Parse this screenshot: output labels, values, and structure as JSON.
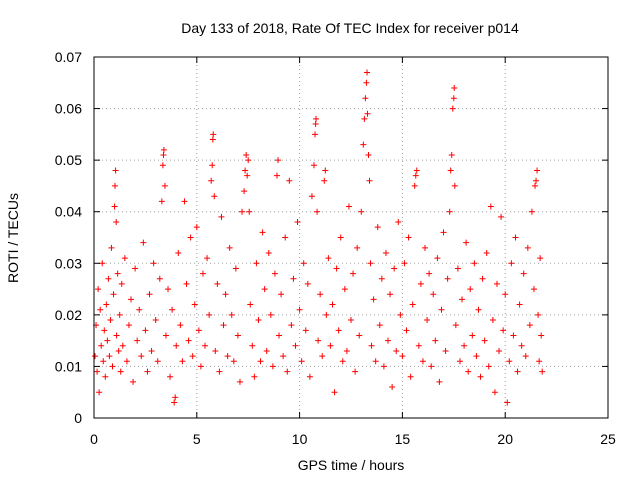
{
  "chart_data": {
    "type": "scatter",
    "title": "Day 133 of 2018, Rate Of TEC Index for receiver p014",
    "xlabel": "GPS time / hours",
    "ylabel": "ROTI / TECUs",
    "xlim": [
      0,
      25
    ],
    "ylim": [
      0,
      0.07
    ],
    "xticks": [
      "0",
      "5",
      "10",
      "15",
      "20",
      "25"
    ],
    "yticks": [
      "0",
      "0.01",
      "0.02",
      "0.03",
      "0.04",
      "0.05",
      "0.06",
      "0.07"
    ],
    "grid": true,
    "marker": "+",
    "color": "#ff0000",
    "series": [
      {
        "points": [
          [
            0.05,
            0.012
          ],
          [
            0.1,
            0.018
          ],
          [
            0.15,
            0.009
          ],
          [
            0.2,
            0.025
          ],
          [
            0.25,
            0.005
          ],
          [
            0.3,
            0.021
          ],
          [
            0.35,
            0.014
          ],
          [
            0.4,
            0.03
          ],
          [
            0.45,
            0.011
          ],
          [
            0.5,
            0.017
          ],
          [
            0.55,
            0.008
          ],
          [
            0.6,
            0.022
          ],
          [
            0.65,
            0.015
          ],
          [
            0.7,
            0.027
          ],
          [
            0.75,
            0.012
          ],
          [
            0.8,
            0.019
          ],
          [
            0.85,
            0.033
          ],
          [
            0.9,
            0.01
          ],
          [
            0.95,
            0.024
          ],
          [
            1.0,
            0.041
          ],
          [
            1.02,
            0.045
          ],
          [
            1.05,
            0.048
          ],
          [
            1.08,
            0.038
          ],
          [
            1.1,
            0.016
          ],
          [
            1.15,
            0.028
          ],
          [
            1.2,
            0.013
          ],
          [
            1.25,
            0.02
          ],
          [
            1.3,
            0.009
          ],
          [
            1.35,
            0.026
          ],
          [
            1.4,
            0.014
          ],
          [
            1.5,
            0.031
          ],
          [
            1.6,
            0.011
          ],
          [
            1.7,
            0.018
          ],
          [
            1.8,
            0.023
          ],
          [
            1.9,
            0.007
          ],
          [
            2.0,
            0.029
          ],
          [
            2.1,
            0.015
          ],
          [
            2.2,
            0.021
          ],
          [
            2.3,
            0.012
          ],
          [
            2.4,
            0.034
          ],
          [
            2.5,
            0.017
          ],
          [
            2.6,
            0.009
          ],
          [
            2.7,
            0.024
          ],
          [
            2.8,
            0.013
          ],
          [
            2.9,
            0.03
          ],
          [
            3.0,
            0.019
          ],
          [
            3.1,
            0.011
          ],
          [
            3.2,
            0.027
          ],
          [
            3.3,
            0.042
          ],
          [
            3.35,
            0.049
          ],
          [
            3.38,
            0.051
          ],
          [
            3.4,
            0.052
          ],
          [
            3.45,
            0.045
          ],
          [
            3.5,
            0.016
          ],
          [
            3.6,
            0.025
          ],
          [
            3.7,
            0.008
          ],
          [
            3.8,
            0.021
          ],
          [
            3.9,
            0.003
          ],
          [
            3.95,
            0.004
          ],
          [
            4.0,
            0.014
          ],
          [
            4.1,
            0.032
          ],
          [
            4.2,
            0.018
          ],
          [
            4.3,
            0.011
          ],
          [
            4.4,
            0.042
          ],
          [
            4.5,
            0.026
          ],
          [
            4.6,
            0.015
          ],
          [
            4.7,
            0.035
          ],
          [
            4.8,
            0.012
          ],
          [
            4.9,
            0.022
          ],
          [
            5.0,
            0.037
          ],
          [
            5.1,
            0.017
          ],
          [
            5.2,
            0.01
          ],
          [
            5.3,
            0.028
          ],
          [
            5.4,
            0.014
          ],
          [
            5.5,
            0.031
          ],
          [
            5.6,
            0.02
          ],
          [
            5.7,
            0.046
          ],
          [
            5.75,
            0.049
          ],
          [
            5.78,
            0.054
          ],
          [
            5.8,
            0.055
          ],
          [
            5.85,
            0.043
          ],
          [
            5.9,
            0.013
          ],
          [
            6.0,
            0.026
          ],
          [
            6.1,
            0.009
          ],
          [
            6.2,
            0.039
          ],
          [
            6.3,
            0.018
          ],
          [
            6.4,
            0.024
          ],
          [
            6.5,
            0.012
          ],
          [
            6.6,
            0.033
          ],
          [
            6.7,
            0.02
          ],
          [
            6.8,
            0.011
          ],
          [
            6.9,
            0.029
          ],
          [
            7.0,
            0.016
          ],
          [
            7.1,
            0.007
          ],
          [
            7.2,
            0.04
          ],
          [
            7.3,
            0.044
          ],
          [
            7.35,
            0.048
          ],
          [
            7.4,
            0.051
          ],
          [
            7.45,
            0.047
          ],
          [
            7.5,
            0.05
          ],
          [
            7.55,
            0.04
          ],
          [
            7.6,
            0.022
          ],
          [
            7.7,
            0.014
          ],
          [
            7.8,
            0.008
          ],
          [
            7.9,
            0.03
          ],
          [
            8.0,
            0.019
          ],
          [
            8.1,
            0.011
          ],
          [
            8.2,
            0.036
          ],
          [
            8.3,
            0.025
          ],
          [
            8.4,
            0.013
          ],
          [
            8.5,
            0.032
          ],
          [
            8.6,
            0.02
          ],
          [
            8.7,
            0.01
          ],
          [
            8.8,
            0.028
          ],
          [
            8.9,
            0.047
          ],
          [
            8.95,
            0.05
          ],
          [
            9.0,
            0.016
          ],
          [
            9.1,
            0.024
          ],
          [
            9.2,
            0.012
          ],
          [
            9.3,
            0.035
          ],
          [
            9.4,
            0.009
          ],
          [
            9.5,
            0.046
          ],
          [
            9.6,
            0.018
          ],
          [
            9.7,
            0.027
          ],
          [
            9.8,
            0.014
          ],
          [
            9.9,
            0.038
          ],
          [
            10.0,
            0.021
          ],
          [
            10.1,
            0.011
          ],
          [
            10.2,
            0.03
          ],
          [
            10.3,
            0.017
          ],
          [
            10.4,
            0.026
          ],
          [
            10.5,
            0.008
          ],
          [
            10.6,
            0.043
          ],
          [
            10.7,
            0.049
          ],
          [
            10.75,
            0.055
          ],
          [
            10.78,
            0.057
          ],
          [
            10.8,
            0.058
          ],
          [
            10.85,
            0.04
          ],
          [
            10.9,
            0.015
          ],
          [
            11.0,
            0.024
          ],
          [
            11.1,
            0.012
          ],
          [
            11.2,
            0.046
          ],
          [
            11.25,
            0.048
          ],
          [
            11.3,
            0.02
          ],
          [
            11.4,
            0.031
          ],
          [
            11.5,
            0.014
          ],
          [
            11.6,
            0.022
          ],
          [
            11.7,
            0.005
          ],
          [
            11.8,
            0.029
          ],
          [
            11.9,
            0.017
          ],
          [
            12.0,
            0.035
          ],
          [
            12.1,
            0.011
          ],
          [
            12.2,
            0.025
          ],
          [
            12.3,
            0.013
          ],
          [
            12.4,
            0.041
          ],
          [
            12.5,
            0.019
          ],
          [
            12.6,
            0.028
          ],
          [
            12.7,
            0.009
          ],
          [
            12.8,
            0.033
          ],
          [
            12.9,
            0.016
          ],
          [
            13.0,
            0.04
          ],
          [
            13.1,
            0.053
          ],
          [
            13.15,
            0.058
          ],
          [
            13.2,
            0.062
          ],
          [
            13.25,
            0.065
          ],
          [
            13.28,
            0.067
          ],
          [
            13.3,
            0.059
          ],
          [
            13.35,
            0.051
          ],
          [
            13.4,
            0.046
          ],
          [
            13.45,
            0.03
          ],
          [
            13.5,
            0.014
          ],
          [
            13.6,
            0.023
          ],
          [
            13.7,
            0.011
          ],
          [
            13.8,
            0.037
          ],
          [
            13.9,
            0.018
          ],
          [
            14.0,
            0.027
          ],
          [
            14.1,
            0.01
          ],
          [
            14.2,
            0.032
          ],
          [
            14.3,
            0.015
          ],
          [
            14.4,
            0.024
          ],
          [
            14.5,
            0.006
          ],
          [
            14.6,
            0.029
          ],
          [
            14.7,
            0.013
          ],
          [
            14.8,
            0.038
          ],
          [
            14.9,
            0.02
          ],
          [
            15.0,
            0.012
          ],
          [
            15.1,
            0.03
          ],
          [
            15.2,
            0.017
          ],
          [
            15.3,
            0.035
          ],
          [
            15.4,
            0.008
          ],
          [
            15.5,
            0.022
          ],
          [
            15.6,
            0.045
          ],
          [
            15.65,
            0.047
          ],
          [
            15.7,
            0.048
          ],
          [
            15.8,
            0.014
          ],
          [
            15.9,
            0.026
          ],
          [
            16.0,
            0.011
          ],
          [
            16.1,
            0.033
          ],
          [
            16.2,
            0.019
          ],
          [
            16.3,
            0.028
          ],
          [
            16.4,
            0.01
          ],
          [
            16.5,
            0.024
          ],
          [
            16.6,
            0.015
          ],
          [
            16.7,
            0.031
          ],
          [
            16.8,
            0.007
          ],
          [
            16.9,
            0.021
          ],
          [
            17.0,
            0.036
          ],
          [
            17.1,
            0.013
          ],
          [
            17.2,
            0.027
          ],
          [
            17.3,
            0.04
          ],
          [
            17.35,
            0.048
          ],
          [
            17.4,
            0.051
          ],
          [
            17.45,
            0.06
          ],
          [
            17.5,
            0.062
          ],
          [
            17.52,
            0.064
          ],
          [
            17.55,
            0.045
          ],
          [
            17.6,
            0.018
          ],
          [
            17.7,
            0.029
          ],
          [
            17.8,
            0.011
          ],
          [
            17.9,
            0.023
          ],
          [
            18.0,
            0.014
          ],
          [
            18.1,
            0.034
          ],
          [
            18.2,
            0.009
          ],
          [
            18.3,
            0.025
          ],
          [
            18.4,
            0.016
          ],
          [
            18.5,
            0.03
          ],
          [
            18.6,
            0.012
          ],
          [
            18.7,
            0.021
          ],
          [
            18.8,
            0.008
          ],
          [
            18.9,
            0.027
          ],
          [
            19.0,
            0.015
          ],
          [
            19.1,
            0.032
          ],
          [
            19.2,
            0.01
          ],
          [
            19.3,
            0.041
          ],
          [
            19.4,
            0.019
          ],
          [
            19.5,
            0.005
          ],
          [
            19.6,
            0.026
          ],
          [
            19.7,
            0.013
          ],
          [
            19.8,
            0.039
          ],
          [
            19.9,
            0.017
          ],
          [
            20.0,
            0.024
          ],
          [
            20.1,
            0.003
          ],
          [
            20.2,
            0.011
          ],
          [
            20.3,
            0.03
          ],
          [
            20.4,
            0.016
          ],
          [
            20.5,
            0.035
          ],
          [
            20.6,
            0.009
          ],
          [
            20.7,
            0.022
          ],
          [
            20.8,
            0.014
          ],
          [
            20.9,
            0.028
          ],
          [
            21.0,
            0.012
          ],
          [
            21.1,
            0.033
          ],
          [
            21.2,
            0.018
          ],
          [
            21.3,
            0.04
          ],
          [
            21.4,
            0.025
          ],
          [
            21.45,
            0.045
          ],
          [
            21.5,
            0.046
          ],
          [
            21.55,
            0.048
          ],
          [
            21.6,
            0.02
          ],
          [
            21.65,
            0.011
          ],
          [
            21.7,
            0.031
          ],
          [
            21.75,
            0.016
          ],
          [
            21.8,
            0.009
          ]
        ]
      }
    ]
  }
}
